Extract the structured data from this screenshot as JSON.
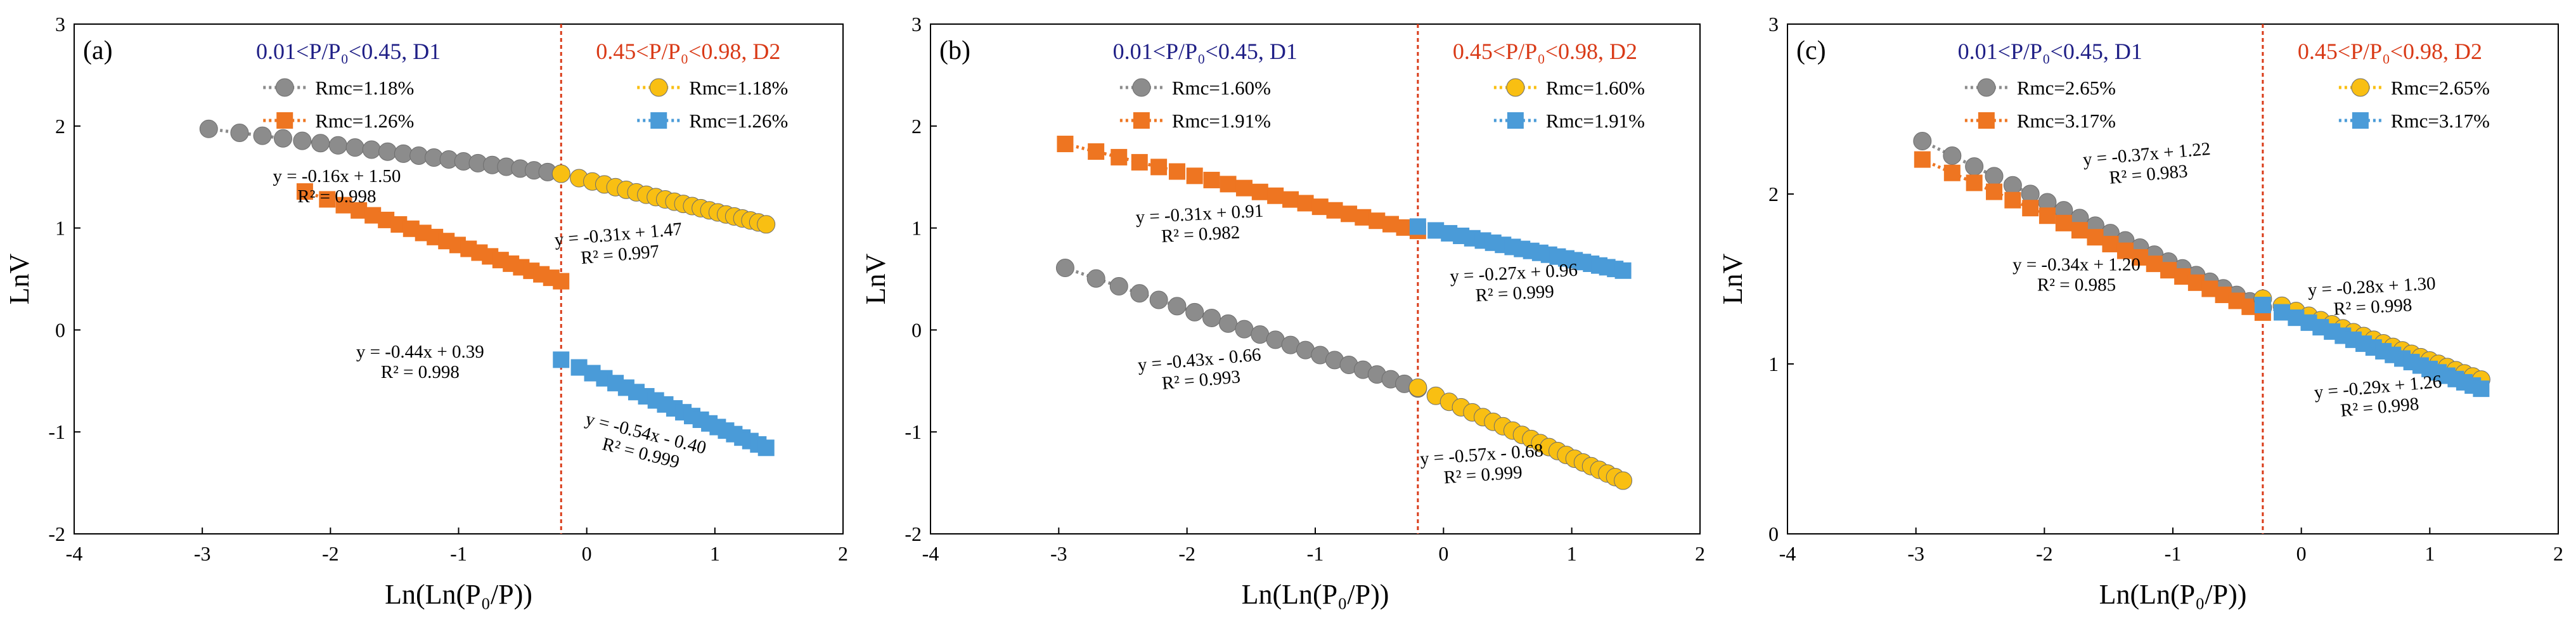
{
  "chart_data": [
    {
      "type": "scatter",
      "panel_label": "(a)",
      "xlabel": "Ln(Ln(P₀/P))",
      "ylabel": "LnV",
      "xlim": [
        -4,
        2
      ],
      "ylim": [
        -2,
        3
      ],
      "xticks": [
        "-4",
        "-3",
        "-2",
        "-1",
        "0",
        "1",
        "2"
      ],
      "yticks": [
        "-2",
        "-1",
        "0",
        "1",
        "2",
        "3"
      ],
      "divider_x": -0.2,
      "region_labels": {
        "D1": "0.01<P/P₀<0.45, D1",
        "D2": "0.45<P/P₀<0.98, D2"
      },
      "legend": {
        "D1": [
          "Rmc=1.18%",
          "Rmc=1.26%"
        ],
        "D2": [
          "Rmc=1.18%",
          "Rmc=1.26%"
        ]
      },
      "series": [
        {
          "name": "Rmc=1.18%",
          "region": "D1",
          "marker": "circle",
          "color": "#8c8c8c",
          "slope": -0.16,
          "intercept": 1.5,
          "x_range": [
            -2.95,
            -0.2
          ]
        },
        {
          "name": "Rmc=1.26%",
          "region": "D1",
          "marker": "square",
          "color": "#ee7521",
          "slope": -0.44,
          "intercept": 0.39,
          "x_range": [
            -2.2,
            -0.2
          ]
        },
        {
          "name": "Rmc=1.18%",
          "region": "D2",
          "marker": "circle",
          "color": "#f9bf12",
          "slope": -0.31,
          "intercept": 1.47,
          "x_range": [
            -0.2,
            1.4
          ]
        },
        {
          "name": "Rmc=1.26%",
          "region": "D2",
          "marker": "square",
          "color": "#4a9bd8",
          "slope": -0.54,
          "intercept": -0.4,
          "x_range": [
            -0.2,
            1.4
          ]
        }
      ],
      "annotations": [
        {
          "eq": "y = -0.16x + 1.50",
          "r2": "R² = 0.998",
          "x": -1.95,
          "y": 1.45,
          "angle": 0
        },
        {
          "eq": "y = -0.31x + 1.47",
          "r2": "R² = 0.997",
          "x": 0.25,
          "y": 0.88,
          "angle": -5
        },
        {
          "eq": "y = -0.44x + 0.39",
          "r2": "R² = 0.998",
          "x": -1.3,
          "y": -0.27,
          "angle": 0
        },
        {
          "eq": "y = -0.54x - 0.40",
          "r2": "R² = 0.999",
          "x": 0.45,
          "y": -1.07,
          "angle": 14
        }
      ]
    },
    {
      "type": "scatter",
      "panel_label": "(b)",
      "xlabel": "Ln(Ln(P₀/P))",
      "ylabel": "LnV",
      "xlim": [
        -4,
        2
      ],
      "ylim": [
        -2,
        3
      ],
      "xticks": [
        "-4",
        "-3",
        "-2",
        "-1",
        "0",
        "1",
        "2"
      ],
      "yticks": [
        "-2",
        "-1",
        "0",
        "1",
        "2",
        "3"
      ],
      "divider_x": -0.2,
      "region_labels": {
        "D1": "0.01<P/P₀<0.45, D1",
        "D2": "0.45<P/P₀<0.98, D2"
      },
      "legend": {
        "D1": [
          "Rmc=1.60%",
          "Rmc=1.91%"
        ],
        "D2": [
          "Rmc=1.60%",
          "Rmc=1.91%"
        ]
      },
      "series": [
        {
          "name": "Rmc=1.60%",
          "region": "D1",
          "marker": "circle",
          "color": "#8c8c8c",
          "slope": -0.43,
          "intercept": -0.66,
          "x_range": [
            -2.95,
            -0.2
          ]
        },
        {
          "name": "Rmc=1.91%",
          "region": "D1",
          "marker": "square",
          "color": "#ee7521",
          "slope": -0.31,
          "intercept": 0.91,
          "x_range": [
            -2.95,
            -0.2
          ]
        },
        {
          "name": "Rmc=1.60%",
          "region": "D2",
          "marker": "circle",
          "color": "#f9bf12",
          "slope": -0.57,
          "intercept": -0.68,
          "x_range": [
            -0.2,
            1.4
          ]
        },
        {
          "name": "Rmc=1.91%",
          "region": "D2",
          "marker": "square",
          "color": "#4a9bd8",
          "slope": -0.27,
          "intercept": 0.96,
          "x_range": [
            -0.2,
            1.4
          ]
        }
      ],
      "annotations": [
        {
          "eq": "y = -0.31x + 0.91",
          "r2": "R² = 0.982",
          "x": -1.9,
          "y": 1.08,
          "angle": -3
        },
        {
          "eq": "y = -0.27x + 0.96",
          "r2": "R² = 0.999",
          "x": 0.55,
          "y": 0.5,
          "angle": -3
        },
        {
          "eq": "y = -0.43x - 0.66",
          "r2": "R² = 0.993",
          "x": -1.9,
          "y": -0.35,
          "angle": -5
        },
        {
          "eq": "y = -0.57x - 0.68",
          "r2": "R² = 0.999",
          "x": 0.3,
          "y": -1.28,
          "angle": -4
        }
      ]
    },
    {
      "type": "scatter",
      "panel_label": "(c)",
      "xlabel": "Ln(Ln(P₀/P))",
      "ylabel": "LnV",
      "xlim": [
        -4,
        2
      ],
      "ylim": [
        0,
        3
      ],
      "xticks": [
        "-4",
        "-3",
        "-2",
        "-1",
        "0",
        "1",
        "2"
      ],
      "yticks": [
        "0",
        "1",
        "2",
        "3"
      ],
      "divider_x": -0.3,
      "region_labels": {
        "D1": "0.01<P/P₀<0.45, D1",
        "D2": "0.45<P/P₀<0.98, D2"
      },
      "legend": {
        "D1": [
          "Rmc=2.65%",
          "Rmc=3.17%"
        ],
        "D2": [
          "Rmc=2.65%",
          "Rmc=3.17%"
        ]
      },
      "series": [
        {
          "name": "Rmc=2.65%",
          "region": "D1",
          "marker": "circle",
          "color": "#8c8c8c",
          "slope": -0.37,
          "intercept": 1.22,
          "x_range": [
            -2.95,
            -0.3
          ]
        },
        {
          "name": "Rmc=3.17%",
          "region": "D1",
          "marker": "square",
          "color": "#ee7521",
          "slope": -0.34,
          "intercept": 1.2,
          "x_range": [
            -2.95,
            -0.3
          ]
        },
        {
          "name": "Rmc=2.65%",
          "region": "D2",
          "marker": "circle",
          "color": "#f9bf12",
          "slope": -0.28,
          "intercept": 1.3,
          "x_range": [
            -0.3,
            1.4
          ]
        },
        {
          "name": "Rmc=3.17%",
          "region": "D2",
          "marker": "square",
          "color": "#4a9bd8",
          "slope": -0.29,
          "intercept": 1.26,
          "x_range": [
            -0.3,
            1.4
          ]
        }
      ],
      "annotations": [
        {
          "eq": "y = -0.37x + 1.22",
          "r2": "R² = 0.983",
          "x": -1.2,
          "y": 2.2,
          "angle": -5
        },
        {
          "eq": "y = -0.34x + 1.20",
          "r2": "R² = 0.985",
          "x": -1.75,
          "y": 1.55,
          "angle": 0
        },
        {
          "eq": "y = -0.28x + 1.30",
          "r2": "R² = 0.998",
          "x": 0.55,
          "y": 1.42,
          "angle": -3
        },
        {
          "eq": "y = -0.29x + 1.26",
          "r2": "R² = 0.998",
          "x": 0.6,
          "y": 0.83,
          "angle": -5
        }
      ]
    }
  ]
}
